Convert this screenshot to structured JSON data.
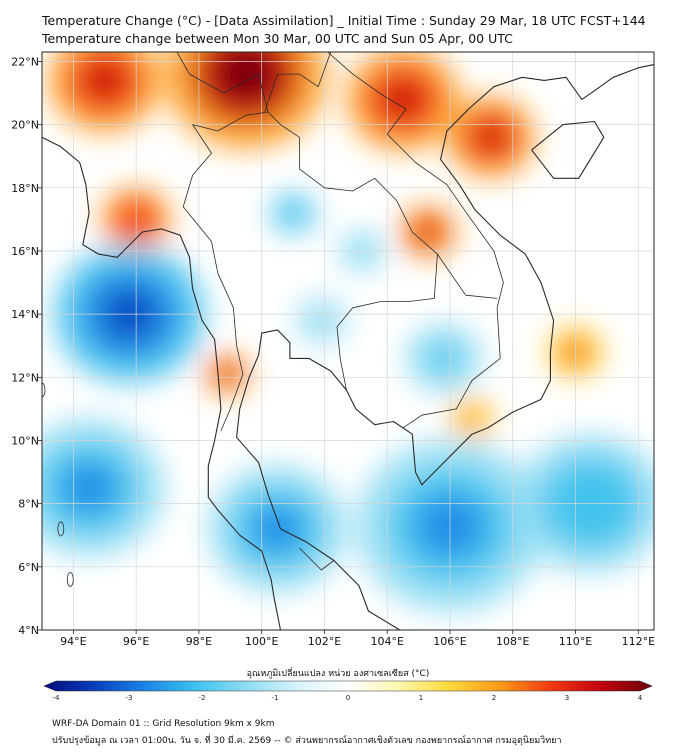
{
  "title": {
    "line1": "Temperature Change (°C) - [Data Assimilation] _ Initial Time : Sunday 29 Mar, 18 UTC FCST+144",
    "line2": "Temperature change between Mon 30 Mar, 00 UTC and Sun 05 Apr, 00 UTC"
  },
  "map": {
    "lon_range": [
      93,
      112.5
    ],
    "lat_range": [
      4,
      22.3
    ],
    "x_ticks": [
      {
        "value": 94,
        "label": "94°E"
      },
      {
        "value": 96,
        "label": "96°E"
      },
      {
        "value": 98,
        "label": "98°E"
      },
      {
        "value": 100,
        "label": "100°E"
      },
      {
        "value": 102,
        "label": "102°E"
      },
      {
        "value": 104,
        "label": "104°E"
      },
      {
        "value": 106,
        "label": "106°E"
      },
      {
        "value": 108,
        "label": "108°E"
      },
      {
        "value": 110,
        "label": "110°E"
      },
      {
        "value": 112,
        "label": "112°E"
      }
    ],
    "y_ticks": [
      {
        "value": 22,
        "label": "22°N"
      },
      {
        "value": 20,
        "label": "20°N"
      },
      {
        "value": 18,
        "label": "18°N"
      },
      {
        "value": 16,
        "label": "16°N"
      },
      {
        "value": 14,
        "label": "14°N"
      },
      {
        "value": 12,
        "label": "12°N"
      },
      {
        "value": 10,
        "label": "10°N"
      },
      {
        "value": 8,
        "label": "8°N"
      },
      {
        "value": 6,
        "label": "6°N"
      },
      {
        "value": 4,
        "label": "4°N"
      }
    ],
    "field_regions": [
      {
        "lon": 99.5,
        "lat": 21.6,
        "value": 3.3,
        "spread": 2.6
      },
      {
        "lon": 95.0,
        "lat": 21.4,
        "value": 3.0,
        "spread": 1.8
      },
      {
        "lon": 104.5,
        "lat": 20.8,
        "value": 3.0,
        "spread": 1.8
      },
      {
        "lon": 107.3,
        "lat": 19.6,
        "value": 2.7,
        "spread": 1.4
      },
      {
        "lon": 105.3,
        "lat": 16.6,
        "value": 3.0,
        "spread": 0.9
      },
      {
        "lon": 96.0,
        "lat": 17.0,
        "value": 2.4,
        "spread": 1.1
      },
      {
        "lon": 98.9,
        "lat": 12.1,
        "value": 2.7,
        "spread": 0.7
      },
      {
        "lon": 110.0,
        "lat": 12.8,
        "value": 2.3,
        "spread": 0.9
      },
      {
        "lon": 106.7,
        "lat": 10.7,
        "value": 1.7,
        "spread": 0.7
      },
      {
        "lon": 95.8,
        "lat": 14.0,
        "value": -2.6,
        "spread": 2.4
      },
      {
        "lon": 94.5,
        "lat": 8.5,
        "value": -2.0,
        "spread": 2.4
      },
      {
        "lon": 100.5,
        "lat": 7.2,
        "value": -2.3,
        "spread": 2.2
      },
      {
        "lon": 106.0,
        "lat": 7.3,
        "value": -2.2,
        "spread": 3.0
      },
      {
        "lon": 110.5,
        "lat": 8.0,
        "value": -1.8,
        "spread": 2.4
      },
      {
        "lon": 101.0,
        "lat": 17.2,
        "value": -1.7,
        "spread": 0.8
      },
      {
        "lon": 103.2,
        "lat": 16.0,
        "value": -1.2,
        "spread": 0.7
      },
      {
        "lon": 101.9,
        "lat": 13.8,
        "value": -1.0,
        "spread": 1.0
      },
      {
        "lon": 105.8,
        "lat": 12.6,
        "value": -1.4,
        "spread": 1.2
      }
    ]
  },
  "colorbar": {
    "label": "อุณหภูมิเปลี่ยนแปลง หน่วย องศาเซลเซียส (°C)",
    "min": -4,
    "max": 4,
    "ticks": [
      {
        "value": -4,
        "label": "-4"
      },
      {
        "value": -3,
        "label": "-3"
      },
      {
        "value": -2,
        "label": "-2"
      },
      {
        "value": -1,
        "label": "-1"
      },
      {
        "value": 0,
        "label": "0"
      },
      {
        "value": 1,
        "label": "1"
      },
      {
        "value": 2,
        "label": "2"
      },
      {
        "value": 3,
        "label": "3"
      },
      {
        "value": 4,
        "label": "4"
      }
    ]
  },
  "footer": {
    "line1": "WRF-DA Domain 01 :: Grid Resolution 9km x 9km",
    "line2": "ปรับปรุงข้อมูล ณ เวลา 01:00น. วัน จ. ที่ 30 มี.ค. 2569 -- © ส่วนพยากรณ์อากาศเชิงตัวเลข กองพยากรณ์อากาศ กรมอุตุนิยมวิทยา"
  },
  "colors": {
    "neutral": "#ffffff",
    "warm": [
      "#fff7b0",
      "#ffd83a",
      "#ff9a18",
      "#f23a14",
      "#c0000e",
      "#6a0008"
    ],
    "cool": [
      "#d8f3fb",
      "#8fdcf3",
      "#3ec2ee",
      "#1a86e6",
      "#0a3fbd",
      "#000a7a"
    ],
    "coastline": "#2a2a2a",
    "grid": "#d6d6d6"
  }
}
